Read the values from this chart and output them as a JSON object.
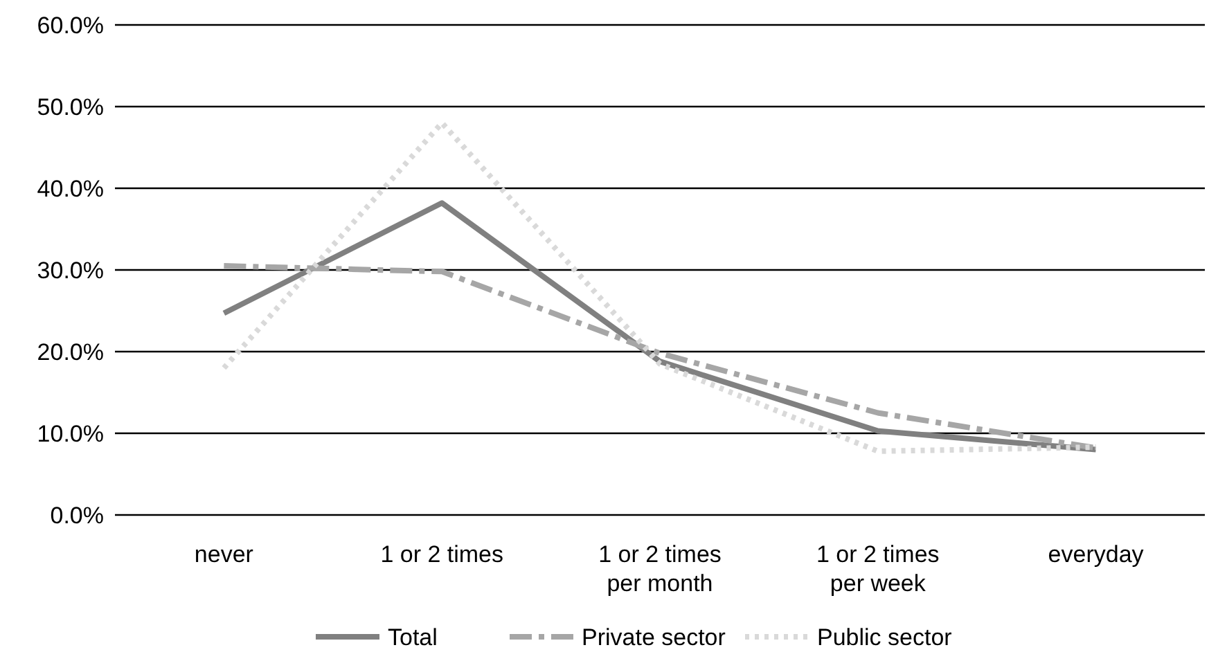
{
  "chart_data": {
    "type": "line",
    "categories": [
      "never",
      "1 or 2 times",
      "1 or 2 times per month",
      "1 or 2 times per week",
      "everyday"
    ],
    "series": [
      {
        "name": "Total",
        "color": "#808080",
        "line_style": "solid",
        "values": [
          24.7,
          38.2,
          18.8,
          10.3,
          8.0
        ]
      },
      {
        "name": "Private sector",
        "color": "#a6a6a6",
        "line_style": "dashdot",
        "values": [
          30.5,
          29.8,
          19.8,
          12.5,
          8.2
        ]
      },
      {
        "name": "Public sector",
        "color": "#d9d9d9",
        "line_style": "dotted",
        "values": [
          18.0,
          48.0,
          18.5,
          7.8,
          8.3
        ]
      }
    ],
    "ylim": [
      0,
      60
    ],
    "yticks": [
      {
        "value": 0,
        "label": "0.0%"
      },
      {
        "value": 10,
        "label": "10.0%"
      },
      {
        "value": 20,
        "label": "20.0%"
      },
      {
        "value": 30,
        "label": "30.0%"
      },
      {
        "value": 40,
        "label": "40.0%"
      },
      {
        "value": 50,
        "label": "50.0%"
      },
      {
        "value": 60,
        "label": "60.0%"
      }
    ],
    "grid": "y",
    "legend": "bottom",
    "marker": "none"
  }
}
